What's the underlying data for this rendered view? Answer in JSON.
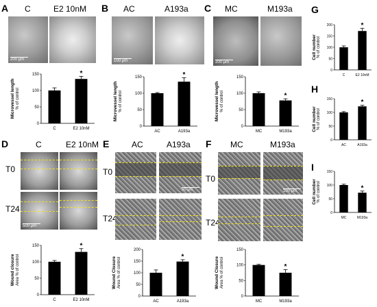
{
  "panels": {
    "A": {
      "letter": "A",
      "col1": "C",
      "col2": "E2 10nM",
      "scale": "200 μm"
    },
    "B": {
      "letter": "B",
      "col1": "AC",
      "col2": "A193a",
      "scale": "100 μm"
    },
    "C": {
      "letter": "C",
      "col1": "MC",
      "col2": "M193a",
      "scale": "200 μm"
    },
    "D": {
      "letter": "D",
      "col1": "C",
      "col2": "E2 10nM",
      "row1": "T0",
      "row2": "T24",
      "scale": "500 μm"
    },
    "E": {
      "letter": "E",
      "col1": "AC",
      "col2": "A193a",
      "row1": "T0",
      "row2": "T24",
      "scale": "50 μm"
    },
    "F": {
      "letter": "F",
      "col1": "MC",
      "col2": "M193a",
      "row1": "T0",
      "row2": "T24",
      "scale": "100 μm"
    },
    "G": {
      "letter": "G"
    },
    "H": {
      "letter": "H"
    },
    "I": {
      "letter": "I"
    }
  },
  "chart_data": [
    {
      "id": "A",
      "type": "bar",
      "categories": [
        "C",
        "E2 10nM"
      ],
      "values": [
        100,
        135
      ],
      "errors": [
        8,
        8
      ],
      "significant": [
        false,
        true
      ],
      "ylabel": "Microvessel length",
      "ylabel2": "% of control",
      "ylim": [
        0,
        150
      ],
      "yticks": [
        0,
        50,
        100,
        150
      ]
    },
    {
      "id": "B",
      "type": "bar",
      "categories": [
        "AC",
        "A193a"
      ],
      "values": [
        100,
        135
      ],
      "errors": [
        2,
        12
      ],
      "significant": [
        false,
        true
      ],
      "ylabel": "Microvessel length",
      "ylabel2": "% of control",
      "ylim": [
        0,
        150
      ],
      "yticks": [
        0,
        50,
        100,
        150
      ]
    },
    {
      "id": "C",
      "type": "bar",
      "categories": [
        "MC",
        "M193a"
      ],
      "values": [
        100,
        78
      ],
      "errors": [
        4,
        5
      ],
      "significant": [
        false,
        true
      ],
      "ylabel": "Microvessel length",
      "ylabel2": "% of control",
      "ylim": [
        0,
        150
      ],
      "yticks": [
        0,
        50,
        100,
        150
      ]
    },
    {
      "id": "D",
      "type": "bar",
      "categories": [
        "C",
        "E2 10nM"
      ],
      "values": [
        100,
        130
      ],
      "errors": [
        4,
        10
      ],
      "significant": [
        false,
        true
      ],
      "ylabel": "Wound closure",
      "ylabel2": "Area % of control",
      "ylim": [
        0,
        150
      ],
      "yticks": [
        0,
        50,
        100,
        150
      ]
    },
    {
      "id": "E",
      "type": "bar",
      "categories": [
        "AC",
        "A193a"
      ],
      "values": [
        100,
        148
      ],
      "errors": [
        12,
        8
      ],
      "significant": [
        false,
        true
      ],
      "ylabel": "Wound Closure",
      "ylabel2": "Area % of control",
      "ylim": [
        0,
        200
      ],
      "yticks": [
        0,
        50,
        100,
        150,
        200
      ]
    },
    {
      "id": "F",
      "type": "bar",
      "categories": [
        "MC",
        "M193a"
      ],
      "values": [
        100,
        75
      ],
      "errors": [
        2,
        10
      ],
      "significant": [
        false,
        true
      ],
      "ylabel": "Wound Closure",
      "ylabel2": "Area % of control",
      "ylim": [
        0,
        150
      ],
      "yticks": [
        0,
        50,
        100,
        150
      ]
    },
    {
      "id": "G",
      "type": "bar",
      "categories": [
        "C",
        "E2 10nM"
      ],
      "values": [
        100,
        172
      ],
      "errors": [
        6,
        12
      ],
      "significant": [
        false,
        true
      ],
      "ylabel": "Cell number",
      "ylabel2": "% of control",
      "ylim": [
        0,
        200
      ],
      "yticks": [
        0,
        50,
        100,
        150,
        200
      ]
    },
    {
      "id": "H",
      "type": "bar",
      "categories": [
        "AC",
        "A193a"
      ],
      "values": [
        100,
        122
      ],
      "errors": [
        3,
        4
      ],
      "significant": [
        false,
        true
      ],
      "ylabel": "Cell number",
      "ylabel2": "% of control",
      "ylim": [
        0,
        150
      ],
      "yticks": [
        0,
        50,
        100,
        150
      ]
    },
    {
      "id": "I",
      "type": "bar",
      "categories": [
        "MC",
        "M193a"
      ],
      "values": [
        100,
        72
      ],
      "errors": [
        3,
        6
      ],
      "significant": [
        false,
        true
      ],
      "ylabel": "Cell number",
      "ylabel2": "% of control",
      "ylim": [
        0,
        150
      ],
      "yticks": [
        0,
        50,
        100,
        150
      ]
    }
  ],
  "marker": "*",
  "colors": {
    "bar": "#000000",
    "line": "#f2e21a"
  }
}
